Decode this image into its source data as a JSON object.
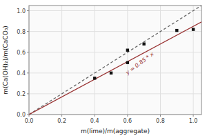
{
  "chart_data": {
    "type": "scatter",
    "x_label": "m(lime)/m(aggregate)",
    "y_label": "m(Ca(OH)₂)/m(CaCO₃)",
    "xlim": [
      0.0,
      1.05
    ],
    "ylim": [
      0.0,
      1.05
    ],
    "xticks": [
      {
        "value": 0.0,
        "label": "0.0"
      },
      0.2,
      0.4,
      0.6,
      0.8,
      {
        "value": 1.0,
        "label": "1.0"
      }
    ],
    "yticks": [
      {
        "value": 0.0,
        "label": "0.0"
      },
      0.2,
      0.4,
      0.6,
      0.8,
      {
        "value": 1.0,
        "label": "1.0"
      }
    ],
    "grid": true,
    "series": [
      {
        "type": "line",
        "color": "#666666",
        "line_style": "dashed",
        "x": [
          0.0,
          1.05
        ],
        "values": [
          0.0,
          1.05
        ]
      },
      {
        "type": "line",
        "color": "#993333",
        "line_style": "solid",
        "x": [
          0.0,
          1.05
        ],
        "values": [
          0.0,
          0.8925
        ]
      },
      {
        "type": "scatter",
        "color": "#111111",
        "marker": "square",
        "x": [
          0.4,
          0.5,
          0.6,
          0.6,
          0.7,
          0.9,
          1.0
        ],
        "values": [
          0.35,
          0.4,
          0.5,
          0.62,
          0.68,
          0.81,
          0.82
        ]
      }
    ],
    "annotations": [
      {
        "text": "y = 0.85 * x",
        "x": 0.6,
        "y": 0.37,
        "color": "#993333"
      }
    ]
  }
}
